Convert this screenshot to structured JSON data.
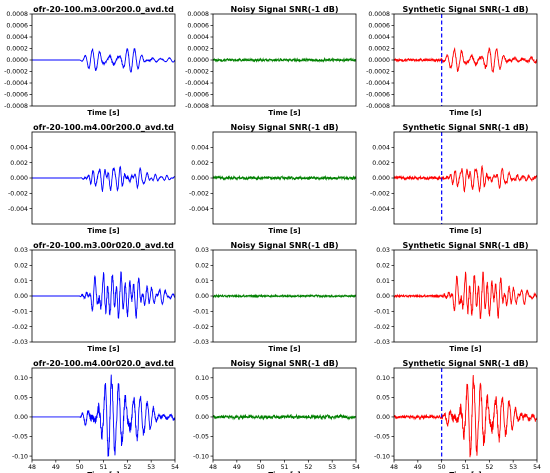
{
  "figure": {
    "rows": 4,
    "columns": 3
  },
  "colors": {
    "observed": "#0000ff",
    "noisy": "#008000",
    "synthetic": "#ff0000",
    "onset_marker": "#0000ff"
  },
  "chart_data": [
    {
      "type": "line",
      "row": 0,
      "col": 0,
      "title": "ofr-20-100.m3.00r200.0_avd.td",
      "xlabel": "Time [s]",
      "xlim": [
        48,
        54
      ],
      "ylim": [
        -0.0008,
        0.0008
      ],
      "yticks": [
        "0.0008",
        "0.0006",
        "0.0004",
        "0.0002",
        "0.0000",
        "-0.0002",
        "-0.0004",
        "-0.0006",
        "-0.0008"
      ],
      "xticks": [],
      "color": "#0000ff",
      "onset_s": 50.0,
      "peak_amplitude": 0.00021,
      "vertical_marker": null
    },
    {
      "type": "line",
      "row": 0,
      "col": 1,
      "title": "Noisy Signal SNR(-1 dB)",
      "xlabel": "Time [s]",
      "xlim": [
        48,
        54
      ],
      "ylim": [
        -0.0008,
        0.0008
      ],
      "yticks": [
        "0.0008",
        "0.0006",
        "0.0004",
        "0.0002",
        "0.0000",
        "-0.0002",
        "-0.0004",
        "-0.0006",
        "-0.0008"
      ],
      "xticks": [],
      "color": "#008000",
      "noise_amplitude": 3e-05,
      "vertical_marker": null
    },
    {
      "type": "line",
      "row": 0,
      "col": 2,
      "title": "Synthetic Signal SNR(-1 dB)",
      "xlabel": "Time [s]",
      "xlim": [
        48,
        54
      ],
      "ylim": [
        -0.0008,
        0.0008
      ],
      "yticks": [
        "0.0008",
        "0.0006",
        "0.0004",
        "0.0002",
        "0.0000",
        "-0.0002",
        "-0.0004",
        "-0.0006",
        "-0.0008"
      ],
      "xticks": [],
      "color": "#ff0000",
      "onset_s": 50.0,
      "peak_amplitude": 0.00021,
      "noise_amplitude": 3e-05,
      "vertical_marker": 50.0
    },
    {
      "type": "line",
      "row": 1,
      "col": 0,
      "title": "ofr-20-100.m4.00r200.0_avd.td",
      "xlabel": "Time [s]",
      "xlim": [
        48,
        54
      ],
      "ylim": [
        -0.006,
        0.006
      ],
      "yticks": [
        "0.004",
        "0.002",
        "0.000",
        "-0.002",
        "-0.004"
      ],
      "xticks": [],
      "color": "#0000ff",
      "onset_s": 50.0,
      "peak_amplitude": 0.0018,
      "vertical_marker": null
    },
    {
      "type": "line",
      "row": 1,
      "col": 1,
      "title": "Noisy Signal SNR(-1 dB)",
      "xlabel": "Time [s]",
      "xlim": [
        48,
        54
      ],
      "ylim": [
        -0.006,
        0.006
      ],
      "yticks": [
        "0.004",
        "0.002",
        "0.000",
        "-0.002",
        "-0.004"
      ],
      "xticks": [],
      "color": "#008000",
      "noise_amplitude": 0.00025,
      "vertical_marker": null
    },
    {
      "type": "line",
      "row": 1,
      "col": 2,
      "title": "Synthetic Signal SNR(-1 dB)",
      "xlabel": "Time [s]",
      "xlim": [
        48,
        54
      ],
      "ylim": [
        -0.006,
        0.006
      ],
      "yticks": [
        "0.004",
        "0.002",
        "0.000",
        "-0.002",
        "-0.004"
      ],
      "xticks": [],
      "color": "#ff0000",
      "onset_s": 50.0,
      "peak_amplitude": 0.0018,
      "noise_amplitude": 0.00025,
      "vertical_marker": 50.0
    },
    {
      "type": "line",
      "row": 2,
      "col": 0,
      "title": "ofr-20-100.m3.00r020.0_avd.td",
      "xlabel": "Time [s]",
      "xlim": [
        48,
        54
      ],
      "ylim": [
        -0.03,
        0.03
      ],
      "yticks": [
        "0.03",
        "0.02",
        "0.01",
        "0.00",
        "-0.01",
        "-0.02",
        "-0.03"
      ],
      "xticks": [],
      "color": "#0000ff",
      "onset_s": 50.0,
      "peak_amplitude": 0.016,
      "vertical_marker": null
    },
    {
      "type": "line",
      "row": 2,
      "col": 1,
      "title": "Noisy Signal SNR(-1 dB)",
      "xlabel": "Time [s]",
      "xlim": [
        48,
        54
      ],
      "ylim": [
        -0.03,
        0.03
      ],
      "yticks": [
        "0.03",
        "0.02",
        "0.01",
        "0.00",
        "-0.01",
        "-0.02",
        "-0.03"
      ],
      "xticks": [],
      "color": "#008000",
      "noise_amplitude": 0.0008,
      "vertical_marker": null
    },
    {
      "type": "line",
      "row": 2,
      "col": 2,
      "title": "Synthetic Signal SNR(-1 dB)",
      "xlabel": "Time [s]",
      "xlim": [
        48,
        54
      ],
      "ylim": [
        -0.03,
        0.03
      ],
      "yticks": [
        "0.03",
        "0.02",
        "0.01",
        "0.00",
        "-0.01",
        "-0.02",
        "-0.03"
      ],
      "xticks": [],
      "color": "#ff0000",
      "onset_s": 50.0,
      "peak_amplitude": 0.016,
      "noise_amplitude": 0.0008,
      "vertical_marker": null
    },
    {
      "type": "line",
      "row": 3,
      "col": 0,
      "title": "ofr-20-100.m4.00r020.0_avd.td",
      "xlabel": "Time [s]",
      "xlim": [
        48,
        54
      ],
      "ylim": [
        -0.11,
        0.125
      ],
      "yticks": [
        "0.10",
        "0.05",
        "0.00",
        "-0.05",
        "-0.10"
      ],
      "xticks": [
        "48",
        "49",
        "50",
        "51",
        "52",
        "53",
        "54"
      ],
      "color": "#0000ff",
      "onset_s": 50.0,
      "peak_amplitude": 0.108,
      "vertical_marker": null
    },
    {
      "type": "line",
      "row": 3,
      "col": 1,
      "title": "Noisy Signal SNR(-1 dB)",
      "xlabel": "Time [s]",
      "xlim": [
        48,
        54
      ],
      "ylim": [
        -0.11,
        0.125
      ],
      "yticks": [
        "0.10",
        "0.05",
        "0.00",
        "-0.05",
        "-0.10"
      ],
      "xticks": [
        "48",
        "49",
        "50",
        "51",
        "52",
        "53",
        "54"
      ],
      "color": "#008000",
      "noise_amplitude": 0.006,
      "vertical_marker": null
    },
    {
      "type": "line",
      "row": 3,
      "col": 2,
      "title": "Synthetic Signal SNR(-1 dB)",
      "xlabel": "Time [s]",
      "xlim": [
        48,
        54
      ],
      "ylim": [
        -0.11,
        0.125
      ],
      "yticks": [
        "0.10",
        "0.05",
        "0.00",
        "-0.05",
        "-0.10"
      ],
      "xticks": [
        "48",
        "49",
        "50",
        "51",
        "52",
        "53",
        "54"
      ],
      "color": "#ff0000",
      "onset_s": 50.0,
      "peak_amplitude": 0.108,
      "noise_amplitude": 0.006,
      "vertical_marker": 50.0
    }
  ]
}
